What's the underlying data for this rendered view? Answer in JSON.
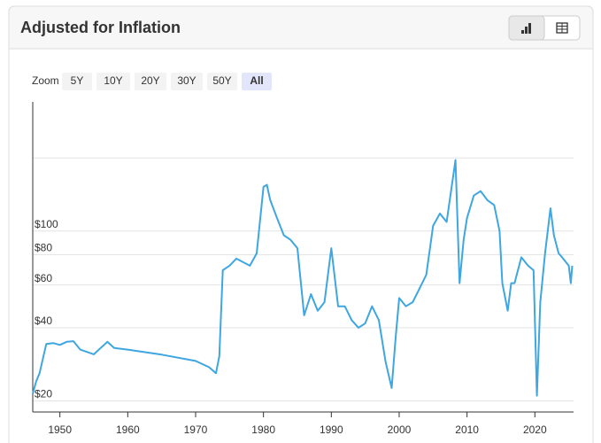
{
  "header": {
    "title": "Adjusted for Inflation"
  },
  "zoom": {
    "label": "Zoom",
    "options": [
      "5Y",
      "10Y",
      "20Y",
      "30Y",
      "50Y",
      "All"
    ],
    "active": 5
  },
  "chart_data": {
    "type": "line",
    "log_scale": true,
    "grid": true,
    "xlim": [
      1946,
      2025.7
    ],
    "xticks": [
      1950,
      1960,
      1970,
      1980,
      1990,
      2000,
      2010,
      2020
    ],
    "ylim": [
      18,
      340
    ],
    "yticks": [
      {
        "value": 20,
        "label": "$20"
      },
      {
        "value": 40,
        "label": "$40"
      },
      {
        "value": 60,
        "label": "$60"
      },
      {
        "value": 80,
        "label": "$80"
      },
      {
        "value": 100,
        "label": "$100"
      },
      {
        "value": 200,
        "label": null
      }
    ],
    "series": [
      {
        "color": "#3ea6e0",
        "x": [
          1946,
          1946.5,
          1947,
          1948,
          1949,
          1950,
          1951,
          1952,
          1953,
          1955,
          1957,
          1958,
          1960,
          1965,
          1970,
          1972,
          1973,
          1973.5,
          1974,
          1975,
          1976,
          1978,
          1979,
          1980,
          1980.5,
          1981,
          1982,
          1983,
          1984,
          1985,
          1986,
          1987,
          1988,
          1989,
          1990,
          1991,
          1992,
          1993,
          1994,
          1995,
          1996,
          1997,
          1998,
          1998.9,
          1999.5,
          2000,
          2001,
          2002,
          2003,
          2004,
          2005,
          2006,
          2007,
          2008.3,
          2008.9,
          2009.5,
          2010,
          2011,
          2012,
          2013,
          2014,
          2014.8,
          2015.2,
          2016,
          2016.5,
          2017,
          2018,
          2019,
          2019.8,
          2020.3,
          2020.8,
          2021.5,
          2022.3,
          2022.8,
          2023.5,
          2024,
          2025,
          2025.3,
          2025.5
        ],
        "values": [
          21.4,
          24,
          26,
          34.3,
          34.6,
          34,
          35,
          35.2,
          32.5,
          31.1,
          35,
          33,
          32.5,
          31,
          29.2,
          27.5,
          26,
          30.6,
          69,
          72,
          77,
          72,
          81,
          152,
          155,
          134,
          113,
          96,
          92,
          85,
          45,
          55,
          47,
          51,
          85,
          49,
          49,
          43,
          40,
          41.7,
          49,
          43,
          29,
          22.6,
          36.8,
          53,
          49,
          51,
          58,
          66,
          105,
          118,
          109,
          196,
          61,
          92,
          113,
          140,
          146,
          134,
          128,
          100,
          61,
          47,
          61,
          61,
          78,
          72,
          69,
          21,
          51,
          81,
          124,
          96,
          81,
          78,
          72,
          61,
          72
        ]
      }
    ]
  }
}
